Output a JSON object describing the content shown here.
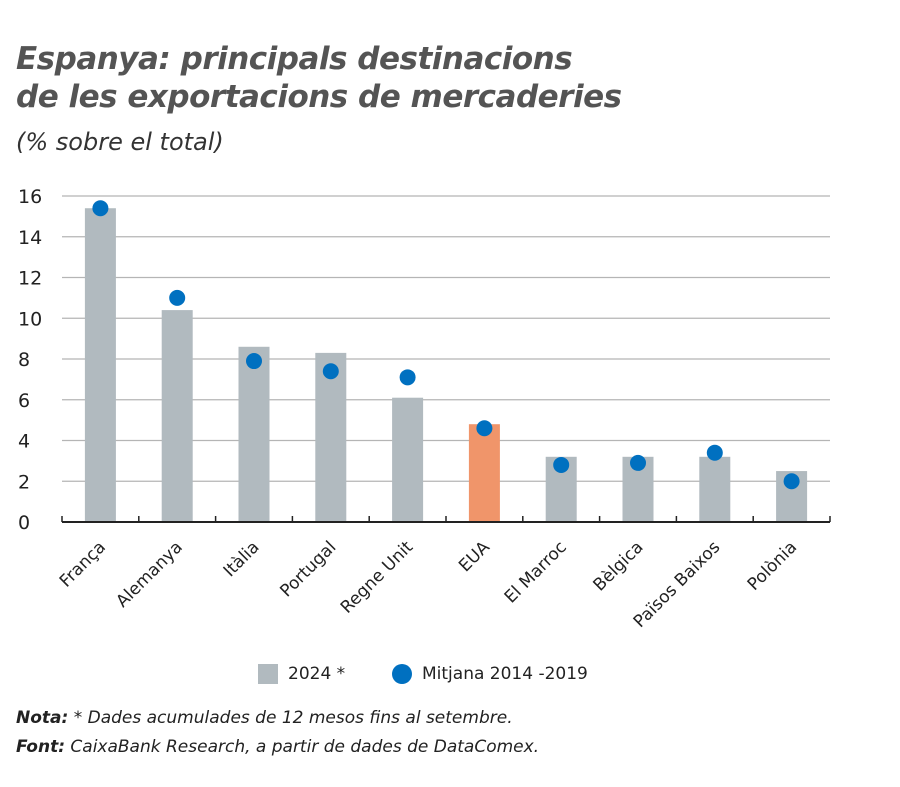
{
  "title_line1": "Espanya: principals destinacions",
  "title_line2": "de les exportacions de mercaderies",
  "subtitle": "(% sobre el total)",
  "chart_data": {
    "type": "bar",
    "title": "Espanya: principals destinacions de les exportacions de mercaderies",
    "ylabel": "",
    "xlabel": "",
    "ylim": [
      0,
      16
    ],
    "yticks": [
      0,
      2,
      4,
      6,
      8,
      10,
      12,
      14,
      16
    ],
    "grid": true,
    "legend_placement": "bottom",
    "categories": [
      "França",
      "Alemanya",
      "Itàlia",
      "Portugal",
      "Regne Unit",
      "EUA",
      "El Marroc",
      "Bèlgica",
      "Països Baixos",
      "Polònia"
    ],
    "series": [
      {
        "name": "2024 *",
        "type": "bar",
        "color": "#b1babf",
        "highlight": {
          "category": "EUA",
          "color": "#f0956a"
        },
        "values": [
          15.4,
          10.4,
          8.6,
          8.3,
          6.1,
          4.8,
          3.2,
          3.2,
          3.2,
          2.5
        ]
      },
      {
        "name": "Mitjana 2014 -2019",
        "type": "scatter",
        "color": "#0070c0",
        "values": [
          15.4,
          11.0,
          7.9,
          7.4,
          7.1,
          4.6,
          2.8,
          2.9,
          3.4,
          2.0
        ]
      }
    ]
  },
  "note_label": "Nota:",
  "note_text": " * Dades acumulades de 12 mesos fins al setembre.",
  "source_label": "Font:",
  "source_text": " CaixaBank Research, a partir de dades de DataComex."
}
